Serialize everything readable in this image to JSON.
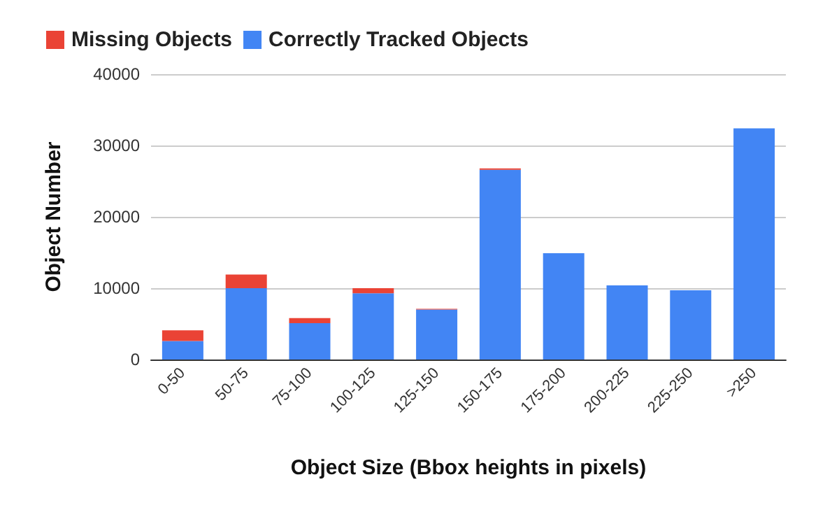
{
  "chart_data": {
    "type": "bar",
    "stacked": true,
    "xlabel": "Object Size (Bbox heights in pixels)",
    "ylabel": "Object Number",
    "categories": [
      "0-50",
      "50-75",
      "75-100",
      "100-125",
      "125-150",
      "150-175",
      "175-200",
      "200-225",
      "225-250",
      ">250"
    ],
    "series": [
      {
        "name": "Correctly Tracked Objects",
        "color": "#4285f4",
        "values": [
          2600,
          10000,
          5100,
          9300,
          7000,
          26600,
          14900,
          10400,
          9700,
          32400
        ]
      },
      {
        "name": "Missing Objects",
        "color": "#ea4335",
        "values": [
          1500,
          1900,
          700,
          700,
          100,
          200,
          0,
          0,
          0,
          0
        ]
      }
    ],
    "ylim": [
      0,
      40000
    ],
    "yticks": [
      0,
      10000,
      20000,
      30000,
      40000
    ],
    "grid": "y",
    "legend": "top left"
  }
}
